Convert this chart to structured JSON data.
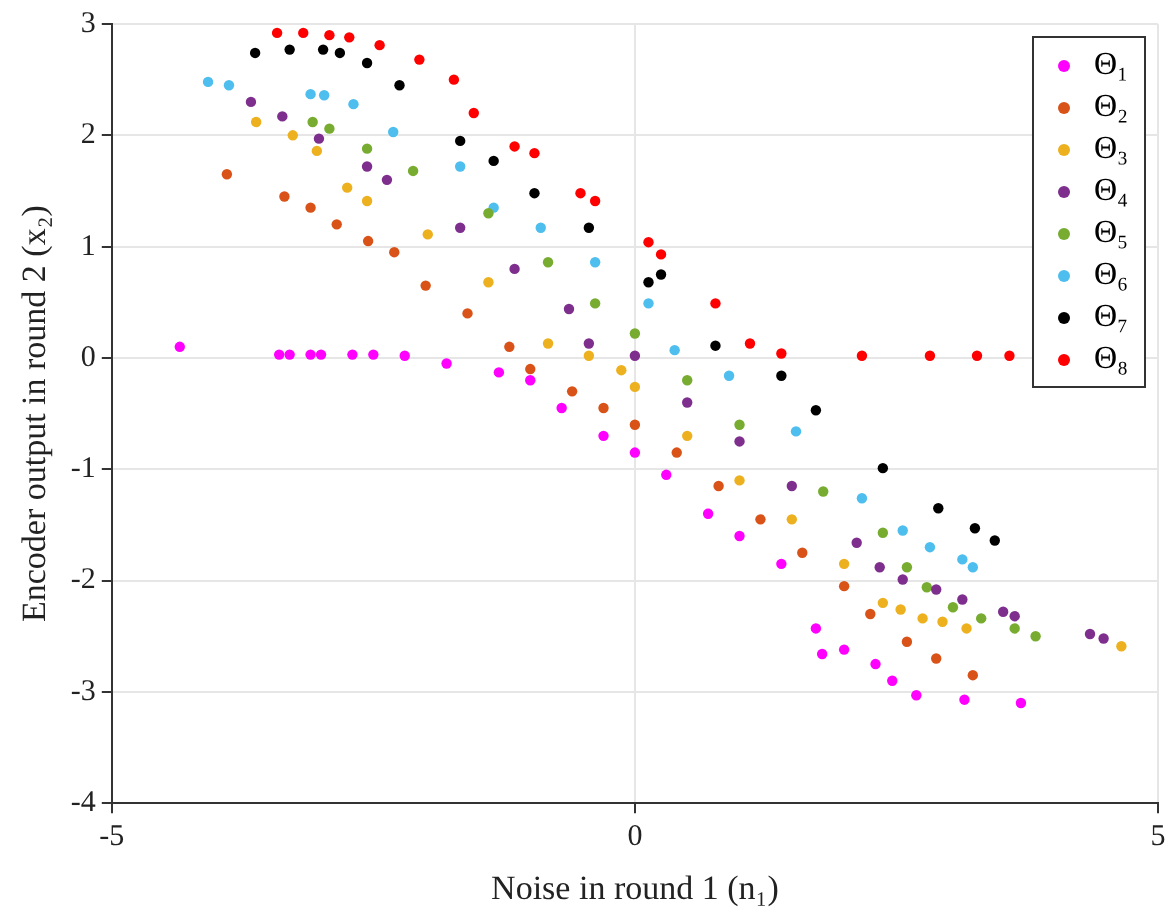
{
  "chart_data": {
    "type": "scatter",
    "xlabel": "Noise in round 1 (n₁)",
    "ylabel": "Encoder output in round 2 (x₂)",
    "xlim": [
      -5,
      5
    ],
    "xticks": [
      -5,
      0,
      5
    ],
    "ylim": [
      -4,
      3
    ],
    "yticks": [
      -4,
      -3,
      -2,
      -1,
      0,
      1,
      2,
      3
    ],
    "grid": true,
    "legend": "top right",
    "marker": "circle",
    "series": [
      {
        "name": "Θ₁",
        "color": "#ff00ff",
        "x": [
          -4.35,
          -3.4,
          -3.3,
          -3.1,
          -3.0,
          -2.7,
          -2.5,
          -2.2,
          -1.8,
          -1.3,
          -1.0,
          -0.7,
          -0.3,
          0,
          0.3,
          0.7,
          1.0,
          1.4,
          1.73,
          1.79,
          2.0,
          2.3,
          2.46,
          2.69,
          3.15,
          3.69
        ],
        "values": [
          0.1,
          0.03,
          0.03,
          0.03,
          0.03,
          0.03,
          0.03,
          0.02,
          -0.05,
          -0.13,
          -0.2,
          -0.45,
          -0.7,
          -0.85,
          -1.05,
          -1.4,
          -1.6,
          -1.85,
          -2.43,
          -2.66,
          -2.62,
          -2.75,
          -2.9,
          -3.03,
          -3.07,
          -3.1
        ]
      },
      {
        "name": "Θ₂",
        "color": "#d95319",
        "x": [
          -3.9,
          -3.35,
          -3.1,
          -2.85,
          -2.55,
          -2.3,
          -2.0,
          -1.6,
          -1.2,
          -1.0,
          -0.6,
          -0.3,
          0,
          0.4,
          0.8,
          1.2,
          1.6,
          2.0,
          2.25,
          2.6,
          2.88,
          3.23
        ],
        "values": [
          1.65,
          1.45,
          1.35,
          1.2,
          1.05,
          0.95,
          0.65,
          0.4,
          0.1,
          -0.1,
          -0.3,
          -0.45,
          -0.6,
          -0.85,
          -1.15,
          -1.45,
          -1.75,
          -2.05,
          -2.3,
          -2.55,
          -2.7,
          -2.85
        ]
      },
      {
        "name": "Θ₃",
        "color": "#edb120",
        "x": [
          -3.62,
          -3.27,
          -3.04,
          -2.75,
          -2.56,
          -1.98,
          -1.4,
          -0.83,
          -0.44,
          -0.13,
          0,
          0.5,
          1.0,
          1.5,
          2.0,
          2.37,
          2.54,
          2.75,
          2.94,
          3.17,
          4.65
        ],
        "values": [
          2.12,
          2.0,
          1.86,
          1.53,
          1.41,
          1.11,
          0.68,
          0.13,
          0.02,
          -0.11,
          -0.26,
          -0.7,
          -1.1,
          -1.45,
          -1.85,
          -2.2,
          -2.26,
          -2.34,
          -2.37,
          -2.43,
          -2.59
        ]
      },
      {
        "name": "Θ₄",
        "color": "#7e2f8e",
        "x": [
          -3.67,
          -3.37,
          -3.02,
          -2.56,
          -2.37,
          -1.67,
          -1.15,
          -0.63,
          -0.44,
          0,
          0.5,
          1.0,
          1.5,
          2.12,
          2.34,
          2.56,
          2.88,
          3.13,
          3.52,
          3.63,
          4.35,
          4.48
        ],
        "values": [
          2.3,
          2.17,
          1.97,
          1.72,
          1.6,
          1.17,
          0.8,
          0.44,
          0.13,
          0.02,
          -0.4,
          -0.75,
          -1.15,
          -1.66,
          -1.88,
          -1.99,
          -2.08,
          -2.17,
          -2.28,
          -2.32,
          -2.48,
          -2.52
        ]
      },
      {
        "name": "Θ₅",
        "color": "#77ac30",
        "x": [
          -3.08,
          -2.92,
          -2.56,
          -2.12,
          -1.4,
          -0.83,
          -0.38,
          0,
          0.5,
          1.0,
          1.8,
          2.37,
          2.6,
          2.79,
          3.04,
          3.31,
          3.63,
          3.83
        ],
        "values": [
          2.12,
          2.06,
          1.88,
          1.68,
          1.3,
          0.86,
          0.49,
          0.22,
          -0.2,
          -0.6,
          -1.2,
          -1.57,
          -1.88,
          -2.06,
          -2.24,
          -2.34,
          -2.43,
          -2.5
        ]
      },
      {
        "name": "Θ₆",
        "color": "#4dbeee",
        "x": [
          -4.08,
          -3.88,
          -3.1,
          -2.97,
          -2.69,
          -2.31,
          -1.67,
          -1.35,
          -0.9,
          -0.38,
          0.13,
          0.38,
          0.9,
          1.54,
          2.17,
          2.56,
          2.82,
          3.13,
          3.23
        ],
        "values": [
          2.48,
          2.45,
          2.37,
          2.36,
          2.28,
          2.03,
          1.72,
          1.35,
          1.17,
          0.86,
          0.49,
          0.07,
          -0.16,
          -0.66,
          -1.26,
          -1.55,
          -1.7,
          -1.81,
          -1.88
        ]
      },
      {
        "name": "Θ₇",
        "color": "#000000",
        "x": [
          -3.63,
          -3.3,
          -2.98,
          -2.82,
          -2.56,
          -2.25,
          -1.67,
          -1.35,
          -0.96,
          -0.44,
          0.13,
          0.25,
          0.77,
          1.4,
          1.73,
          2.37,
          2.9,
          3.25,
          3.44
        ],
        "values": [
          2.74,
          2.77,
          2.77,
          2.74,
          2.65,
          2.45,
          1.95,
          1.77,
          1.48,
          1.17,
          0.68,
          0.75,
          0.11,
          -0.16,
          -0.47,
          -0.99,
          -1.35,
          -1.53,
          -1.64
        ]
      },
      {
        "name": "Θ₈",
        "color": "#ff0000",
        "x": [
          -3.42,
          -3.17,
          -2.92,
          -2.73,
          -2.44,
          -2.06,
          -1.73,
          -1.54,
          -1.15,
          -0.96,
          -0.52,
          -0.38,
          0.13,
          0.25,
          0.77,
          1.1,
          1.4,
          2.17,
          2.82,
          3.27,
          3.58
        ],
        "values": [
          2.92,
          2.92,
          2.9,
          2.88,
          2.81,
          2.68,
          2.5,
          2.2,
          1.9,
          1.84,
          1.48,
          1.41,
          1.04,
          0.93,
          0.49,
          0.13,
          0.04,
          0.02,
          0.02,
          0.02,
          0.02
        ]
      }
    ]
  }
}
